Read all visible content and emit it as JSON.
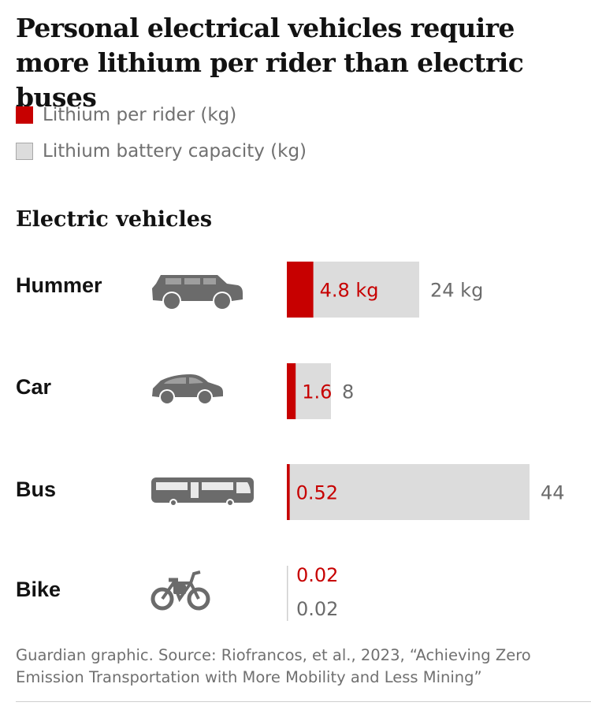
{
  "title": "Personal electrical vehicles require more lithium per rider than electric buses",
  "legend": [
    {
      "label": "Lithium per rider (kg)",
      "color": "#c70000"
    },
    {
      "label": "Lithium battery capacity (kg)",
      "color": "#dcdcdc"
    }
  ],
  "section_title": "Electric vehicles",
  "vehicles": [
    {
      "name": "Hummer",
      "icon": "suv-icon"
    },
    {
      "name": "Car",
      "icon": "car-icon"
    },
    {
      "name": "Bus",
      "icon": "bus-icon"
    },
    {
      "name": "Bike",
      "icon": "ebike-icon"
    }
  ],
  "chart_data": {
    "type": "bar",
    "categories": [
      "Hummer",
      "Car",
      "Bus",
      "Bike"
    ],
    "series": [
      {
        "name": "Lithium per rider (kg)",
        "values": [
          4.8,
          1.6,
          0.52,
          0.02
        ],
        "labels": [
          "4.8 kg",
          "1.6",
          "0.52",
          "0.02"
        ],
        "color": "#c70000"
      },
      {
        "name": "Lithium battery capacity (kg)",
        "values": [
          24,
          8,
          44,
          0.02
        ],
        "labels": [
          "24 kg",
          "8",
          "44",
          "0.02"
        ],
        "color": "#dcdcdc"
      }
    ],
    "orientation": "horizontal",
    "overlaid": true
  },
  "source": "Guardian graphic. Source: Riofrancos, et al., 2023, “Achieving Zero Emission Transportation with More Mobility and Less Mining”"
}
